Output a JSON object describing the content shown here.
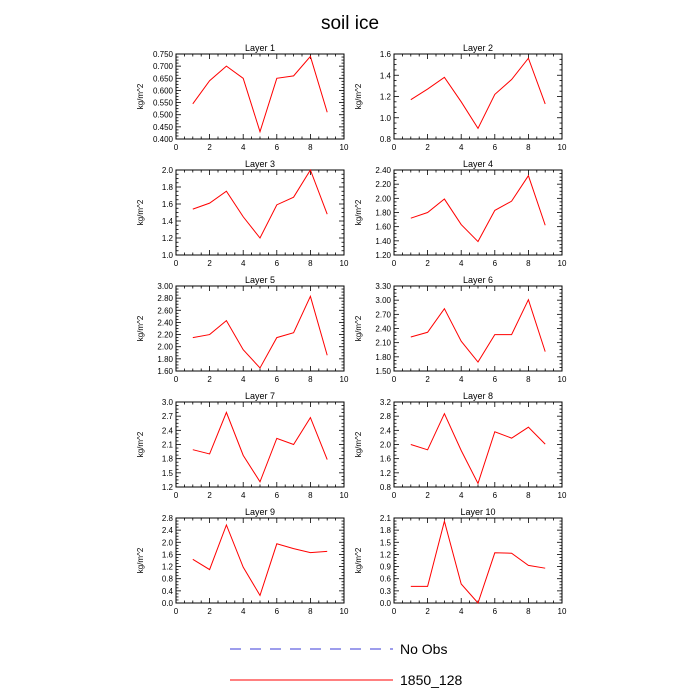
{
  "figure": {
    "title": "soil ice"
  },
  "legend": {
    "items": [
      {
        "label": "No Obs",
        "color": "#3b3bd8",
        "dash": "dashed"
      },
      {
        "label": "1850_128",
        "color": "#ff0000",
        "dash": "solid"
      }
    ]
  },
  "chart_data": [
    {
      "type": "line",
      "title": "Layer 1",
      "xlabel": "",
      "ylabel": "kg/m^2",
      "xlim": [
        0,
        10
      ],
      "xticks": [
        0,
        2,
        4,
        6,
        8,
        10
      ],
      "ylim": [
        0.4,
        0.75
      ],
      "yticks": [
        "0.400",
        "0.450",
        "0.500",
        "0.550",
        "0.600",
        "0.650",
        "0.700",
        "0.750"
      ],
      "x": [
        1,
        2,
        3,
        4,
        5,
        6,
        7,
        8,
        9
      ],
      "series": [
        {
          "name": "1850_128",
          "color": "#ff0000",
          "values": [
            0.545,
            0.64,
            0.7,
            0.65,
            0.43,
            0.65,
            0.66,
            0.74,
            0.51
          ]
        }
      ]
    },
    {
      "type": "line",
      "title": "Layer 2",
      "xlabel": "",
      "ylabel": "kg/m^2",
      "xlim": [
        0,
        10
      ],
      "xticks": [
        0,
        2,
        4,
        6,
        8,
        10
      ],
      "ylim": [
        0.8,
        1.6
      ],
      "yticks": [
        "0.8",
        "1.0",
        "1.2",
        "1.4",
        "1.6"
      ],
      "x": [
        1,
        2,
        3,
        4,
        5,
        6,
        7,
        8,
        9
      ],
      "series": [
        {
          "name": "1850_128",
          "color": "#ff0000",
          "values": [
            1.17,
            1.27,
            1.38,
            1.15,
            0.9,
            1.22,
            1.36,
            1.56,
            1.13
          ]
        }
      ]
    },
    {
      "type": "line",
      "title": "Layer 3",
      "xlabel": "",
      "ylabel": "kg/m^2",
      "xlim": [
        0,
        10
      ],
      "xticks": [
        0,
        2,
        4,
        6,
        8,
        10
      ],
      "ylim": [
        1.0,
        2.0
      ],
      "yticks": [
        "1.0",
        "1.2",
        "1.4",
        "1.6",
        "1.8",
        "2.0"
      ],
      "x": [
        1,
        2,
        3,
        4,
        5,
        6,
        7,
        8,
        9
      ],
      "series": [
        {
          "name": "1850_128",
          "color": "#ff0000",
          "values": [
            1.54,
            1.61,
            1.75,
            1.45,
            1.2,
            1.59,
            1.68,
            2.0,
            1.48
          ]
        }
      ]
    },
    {
      "type": "line",
      "title": "Layer 4",
      "xlabel": "",
      "ylabel": "kg/m^2",
      "xlim": [
        0,
        10
      ],
      "xticks": [
        0,
        2,
        4,
        6,
        8,
        10
      ],
      "ylim": [
        1.2,
        2.4
      ],
      "yticks": [
        "1.20",
        "1.40",
        "1.60",
        "1.80",
        "2.00",
        "2.20",
        "2.40"
      ],
      "x": [
        1,
        2,
        3,
        4,
        5,
        6,
        7,
        8,
        9
      ],
      "series": [
        {
          "name": "1850_128",
          "color": "#ff0000",
          "values": [
            1.72,
            1.8,
            1.99,
            1.63,
            1.39,
            1.83,
            1.96,
            2.32,
            1.62
          ]
        }
      ]
    },
    {
      "type": "line",
      "title": "Layer 5",
      "xlabel": "",
      "ylabel": "kg/m^2",
      "xlim": [
        0,
        10
      ],
      "xticks": [
        0,
        2,
        4,
        6,
        8,
        10
      ],
      "ylim": [
        1.6,
        3.0
      ],
      "yticks": [
        "1.60",
        "1.80",
        "2.00",
        "2.20",
        "2.40",
        "2.60",
        "2.80",
        "3.00"
      ],
      "x": [
        1,
        2,
        3,
        4,
        5,
        6,
        7,
        8,
        9
      ],
      "series": [
        {
          "name": "1850_128",
          "color": "#ff0000",
          "values": [
            2.15,
            2.2,
            2.43,
            1.95,
            1.65,
            2.15,
            2.23,
            2.83,
            1.86
          ]
        }
      ]
    },
    {
      "type": "line",
      "title": "Layer 6",
      "xlabel": "",
      "ylabel": "kg/m^2",
      "xlim": [
        0,
        10
      ],
      "xticks": [
        0,
        2,
        4,
        6,
        8,
        10
      ],
      "ylim": [
        1.5,
        3.3
      ],
      "yticks": [
        "1.50",
        "1.80",
        "2.10",
        "2.40",
        "2.70",
        "3.00",
        "3.30"
      ],
      "x": [
        1,
        2,
        3,
        4,
        5,
        6,
        7,
        8,
        9
      ],
      "series": [
        {
          "name": "1850_128",
          "color": "#ff0000",
          "values": [
            2.22,
            2.32,
            2.82,
            2.13,
            1.69,
            2.27,
            2.27,
            3.01,
            1.91
          ]
        }
      ]
    },
    {
      "type": "line",
      "title": "Layer 7",
      "xlabel": "",
      "ylabel": "kg/m^2",
      "xlim": [
        0,
        10
      ],
      "xticks": [
        0,
        2,
        4,
        6,
        8,
        10
      ],
      "ylim": [
        1.2,
        3.0
      ],
      "yticks": [
        "1.2",
        "1.5",
        "1.8",
        "2.1",
        "2.4",
        "2.7",
        "3.0"
      ],
      "x": [
        1,
        2,
        3,
        4,
        5,
        6,
        7,
        8,
        9
      ],
      "series": [
        {
          "name": "1850_128",
          "color": "#ff0000",
          "values": [
            1.99,
            1.9,
            2.78,
            1.87,
            1.31,
            2.23,
            2.1,
            2.67,
            1.78
          ]
        }
      ]
    },
    {
      "type": "line",
      "title": "Layer 8",
      "xlabel": "",
      "ylabel": "kg/m^2",
      "xlim": [
        0,
        10
      ],
      "xticks": [
        0,
        2,
        4,
        6,
        8,
        10
      ],
      "ylim": [
        0.8,
        3.2
      ],
      "yticks": [
        "0.8",
        "1.2",
        "1.6",
        "2.0",
        "2.4",
        "2.8",
        "3.2"
      ],
      "x": [
        1,
        2,
        3,
        4,
        5,
        6,
        7,
        8,
        9
      ],
      "series": [
        {
          "name": "1850_128",
          "color": "#ff0000",
          "values": [
            2.0,
            1.85,
            2.87,
            1.83,
            0.9,
            2.36,
            2.18,
            2.49,
            2.01
          ]
        }
      ]
    },
    {
      "type": "line",
      "title": "Layer 9",
      "xlabel": "",
      "ylabel": "kg/m^2",
      "xlim": [
        0,
        10
      ],
      "xticks": [
        0,
        2,
        4,
        6,
        8,
        10
      ],
      "ylim": [
        0.0,
        2.8
      ],
      "yticks": [
        "0.0",
        "0.4",
        "0.8",
        "1.2",
        "1.6",
        "2.0",
        "2.4",
        "2.8"
      ],
      "x": [
        1,
        2,
        3,
        4,
        5,
        6,
        7,
        8,
        9
      ],
      "series": [
        {
          "name": "1850_128",
          "color": "#ff0000",
          "values": [
            1.44,
            1.1,
            2.57,
            1.18,
            0.25,
            1.95,
            1.79,
            1.66,
            1.7
          ]
        }
      ]
    },
    {
      "type": "line",
      "title": "Layer 10",
      "xlabel": "",
      "ylabel": "kg/m^2",
      "xlim": [
        0,
        10
      ],
      "xticks": [
        0,
        2,
        4,
        6,
        8,
        10
      ],
      "ylim": [
        0.0,
        2.1
      ],
      "yticks": [
        "0.0",
        "0.3",
        "0.6",
        "0.9",
        "1.2",
        "1.5",
        "1.8",
        "2.1"
      ],
      "x": [
        1,
        2,
        3,
        4,
        5,
        6,
        7,
        8,
        9
      ],
      "series": [
        {
          "name": "1850_128",
          "color": "#ff0000",
          "values": [
            0.41,
            0.41,
            2.02,
            0.47,
            0.0,
            1.24,
            1.23,
            0.93,
            0.86
          ]
        }
      ]
    }
  ]
}
